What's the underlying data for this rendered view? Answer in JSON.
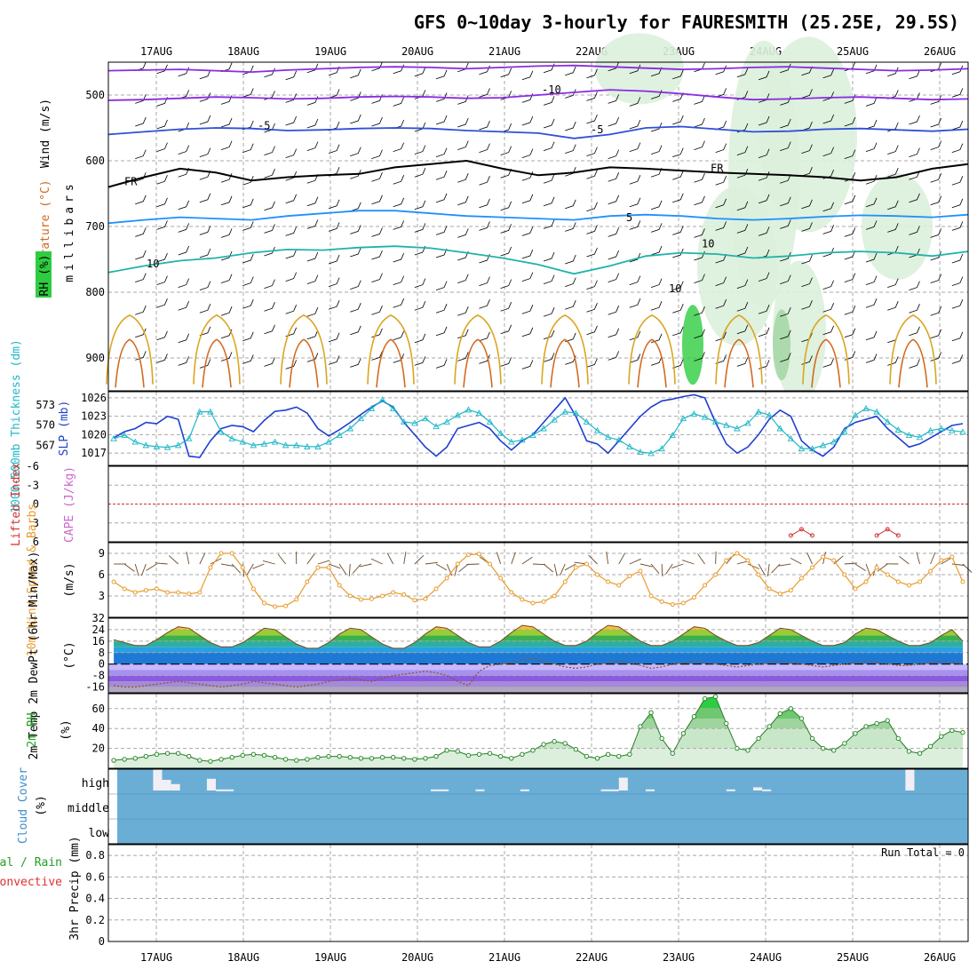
{
  "title": "GFS 0~10day 3-hourly for FAURESMITH (25.25E, 29.5S)",
  "colors": {
    "grid": "#a8a8a8",
    "frame": "#000000",
    "cloud_bg": "#6aaed6",
    "cloud_bar": "#f2eef6",
    "temp_cold": "#8a2be2",
    "temp_mid": "#2f4fd8",
    "temp_light": "#1e90ff",
    "temp_teal": "#20b2aa",
    "temp_warm": "#daa520",
    "temp_hot": "#d2691e",
    "temp_vhot": "#e0207a",
    "slp": "#1f3fd0",
    "thickness": "#20b8c8",
    "wind10": "#e89b2a",
    "rh2m": "#22a022",
    "rh_shade_light": "#dcefdc",
    "rh_shade_mid": "#9fd49f",
    "rh_shade_dark": "#2ecc40",
    "li": "#d03030",
    "dewpt": "#8b5a2b"
  },
  "dates": [
    "17AUG",
    "18AUG",
    "19AUG",
    "20AUG",
    "21AUG",
    "22AUG",
    "23AUG",
    "24AUG",
    "25AUG",
    "26AUG"
  ],
  "run_total": "Run Total = 0",
  "chart_data": [
    {
      "id": "upper",
      "type": "line",
      "yaxis_labels": [
        "Wind (m/s)",
        "Temperature (°C)",
        "RH (%)"
      ],
      "ylabel": "millibars",
      "y_ticks": [
        500,
        600,
        700,
        800,
        900
      ],
      "ylim": [
        950,
        450
      ],
      "contour_labels": [
        "-10",
        "-5",
        "-5",
        "FR",
        "FR",
        "5",
        "10",
        "10",
        "10"
      ],
      "series": [
        {
          "temp": -12,
          "color_key": "temp_cold",
          "values": [
            463,
            462,
            461,
            463,
            465,
            462,
            460,
            458,
            457,
            458,
            460,
            458,
            456,
            455,
            457,
            459,
            461,
            460,
            458,
            457,
            459,
            461,
            463,
            462,
            460
          ]
        },
        {
          "temp": -10,
          "color_key": "temp_cold",
          "values": [
            508,
            507,
            505,
            503,
            504,
            506,
            505,
            503,
            502,
            503,
            505,
            504,
            500,
            496,
            492,
            494,
            498,
            503,
            507,
            506,
            504,
            503,
            505,
            507,
            506
          ]
        },
        {
          "temp": -5,
          "color_key": "temp_mid",
          "values": [
            560,
            556,
            552,
            550,
            551,
            554,
            553,
            551,
            550,
            551,
            554,
            556,
            558,
            566,
            560,
            550,
            548,
            552,
            556,
            555,
            552,
            551,
            553,
            555,
            552
          ]
        },
        {
          "temp": 0,
          "color_key": "frame",
          "values": [
            640,
            625,
            612,
            618,
            630,
            625,
            622,
            620,
            610,
            605,
            600,
            612,
            622,
            618,
            610,
            612,
            615,
            618,
            620,
            622,
            625,
            630,
            625,
            612,
            605
          ]
        },
        {
          "temp": 5,
          "color_key": "temp_light",
          "values": [
            695,
            690,
            686,
            688,
            690,
            684,
            680,
            676,
            676,
            680,
            684,
            686,
            688,
            690,
            684,
            682,
            684,
            688,
            690,
            688,
            685,
            683,
            684,
            686,
            682
          ]
        },
        {
          "temp": 10,
          "color_key": "temp_teal",
          "values": [
            770,
            760,
            752,
            748,
            740,
            735,
            736,
            732,
            730,
            733,
            740,
            748,
            758,
            772,
            760,
            745,
            740,
            742,
            748,
            745,
            740,
            738,
            740,
            745,
            738
          ]
        }
      ]
    },
    {
      "id": "slp",
      "type": "line",
      "left_label": "1000-500mb Thickness (dm)",
      "right_label": "SLP (mb)",
      "left_ticks": [
        573,
        570,
        567
      ],
      "right_ticks": [
        1026,
        1023,
        1020,
        1017
      ],
      "ylim_thickness": [
        564,
        575
      ],
      "ylim_slp": [
        1015,
        1027
      ],
      "x": [
        0,
        1,
        2,
        3,
        4,
        5,
        6,
        7,
        8,
        9,
        10,
        11,
        12,
        13,
        14,
        15,
        16,
        17,
        18,
        19,
        20,
        21,
        22,
        23,
        24,
        25,
        26,
        27,
        28,
        29,
        30,
        31,
        32,
        33,
        34,
        35,
        36,
        37,
        38,
        39,
        40,
        41,
        42,
        43,
        44,
        45,
        46,
        47,
        48,
        49,
        50,
        51,
        52,
        53,
        54,
        55,
        56,
        57,
        58,
        59,
        60,
        61,
        62,
        63,
        64,
        65,
        66,
        67,
        68,
        69,
        70,
        71,
        72,
        73,
        74,
        75,
        76,
        77,
        78,
        79
      ],
      "series": [
        {
          "name": "SLP",
          "color_key": "slp",
          "values": [
            1019.5,
            1020.5,
            1021,
            1022,
            1021.8,
            1023,
            1022.5,
            1016.5,
            1016.3,
            1019,
            1021,
            1021.5,
            1021.3,
            1020.5,
            1022.3,
            1023.8,
            1024,
            1024.5,
            1023.5,
            1021,
            1019.8,
            1020.8,
            1022,
            1023.3,
            1024.5,
            1025.5,
            1024.5,
            1022,
            1020,
            1018,
            1016.5,
            1018,
            1021,
            1021.5,
            1022,
            1021,
            1019,
            1017.5,
            1019,
            1020,
            1022,
            1024,
            1026,
            1023,
            1019,
            1018.5,
            1017,
            1019,
            1021,
            1023,
            1024.5,
            1025.5,
            1025.8,
            1026.2,
            1026.5,
            1026,
            1022,
            1018.5,
            1017,
            1018,
            1020,
            1022.5,
            1024,
            1023,
            1019,
            1017.5,
            1016.5,
            1018,
            1021,
            1022,
            1022.5,
            1023,
            1021,
            1019.5,
            1018,
            1018.5,
            1019.5,
            1020.5,
            1021.5,
            1021.8
          ]
        },
        {
          "name": "Thickness",
          "color_key": "thickness",
          "values": [
            568,
            568.5,
            567.5,
            567,
            566.8,
            566.7,
            567,
            568,
            572,
            572,
            569,
            568,
            567.5,
            567,
            567.2,
            567.5,
            567,
            567,
            566.8,
            566.8,
            567.5,
            568.5,
            569.5,
            571,
            572.5,
            573.8,
            572.5,
            570.5,
            570.3,
            571,
            569.8,
            570.5,
            571.5,
            572.3,
            571.8,
            570.5,
            568.8,
            567.5,
            567.8,
            568.5,
            569.5,
            570.8,
            572,
            571.8,
            570.5,
            569.2,
            568.2,
            567.8,
            566.8,
            566,
            565.8,
            566.5,
            568.5,
            571,
            571.7,
            571.2,
            570.5,
            570,
            569.5,
            570.3,
            572,
            571.5,
            569.5,
            568,
            566.5,
            566.5,
            567,
            567.5,
            569,
            571.5,
            572.5,
            572,
            570.5,
            569.3,
            568.5,
            568.2,
            569.2,
            569.5,
            569.2,
            569
          ]
        }
      ]
    },
    {
      "id": "cape",
      "type": "line",
      "left_label": "Lifted Index",
      "right_label": "CAPE (J/kg)",
      "y_ticks": [
        "-6",
        "-3",
        "0",
        "3",
        "6"
      ],
      "ylim": [
        -6,
        6
      ],
      "series": [
        {
          "name": "Lifted Index segment 1",
          "color_key": "li",
          "x": [
            63,
            64,
            65
          ],
          "values": [
            5,
            4,
            5
          ]
        },
        {
          "name": "Lifted Index segment 2",
          "color_key": "li",
          "x": [
            71,
            72,
            73
          ],
          "values": [
            5,
            4,
            5
          ]
        }
      ]
    },
    {
      "id": "wind10",
      "type": "line",
      "ylabel": "10m Wind Speed & Barbs",
      "unit": "(m/s)",
      "y_ticks": [
        9,
        6,
        3
      ],
      "ylim": [
        0,
        10.5
      ],
      "series": [
        {
          "name": "10m Wind Speed",
          "color_key": "wind10",
          "values": [
            5,
            4,
            3.5,
            3.8,
            4,
            3.5,
            3.5,
            3.3,
            3.5,
            7,
            9,
            9,
            7,
            4,
            2,
            1.5,
            1.6,
            2.5,
            5,
            7,
            7,
            4.5,
            3,
            2.5,
            2.6,
            3,
            3.5,
            3.2,
            2.4,
            2.6,
            4,
            5.5,
            7.5,
            8.8,
            8.9,
            7.5,
            5.5,
            3.5,
            2.5,
            2,
            2.2,
            3,
            5,
            7,
            7.5,
            6,
            5,
            4.5,
            5.8,
            6.5,
            3,
            2.2,
            1.8,
            2,
            2.8,
            4.5,
            6,
            8,
            9,
            8,
            6,
            4,
            3.3,
            3.8,
            5.5,
            7,
            8.5,
            8,
            6,
            4,
            5,
            7,
            6,
            5,
            4.5,
            5,
            6.5,
            8,
            8.5,
            5
          ]
        }
      ]
    },
    {
      "id": "temp2m",
      "type": "area",
      "ylabel": "2m Temp 2m DewPt (6hr Min/Max)",
      "unit": "(°C)",
      "y_ticks": [
        32,
        24,
        16,
        8,
        0,
        -8,
        -16
      ],
      "ylim": [
        -20,
        32
      ],
      "series": [
        {
          "name": "2m Temp",
          "color_key": "temp_warm",
          "values": [
            17,
            15,
            13,
            13,
            17,
            22,
            26,
            25,
            20,
            15,
            12,
            12,
            15,
            20,
            25,
            24,
            19,
            14,
            11,
            11,
            15,
            21,
            25,
            24,
            19,
            14,
            11,
            11,
            15,
            21,
            26,
            25,
            20,
            15,
            12,
            12,
            16,
            22,
            27,
            26,
            21,
            16,
            13,
            13,
            16,
            22,
            27,
            26,
            21,
            16,
            13,
            13,
            16,
            21,
            26,
            25,
            20,
            16,
            13,
            13,
            15,
            20,
            25,
            24,
            20,
            16,
            13,
            13,
            15,
            21,
            25,
            24,
            20,
            16,
            13,
            13,
            15,
            20,
            24,
            16
          ]
        },
        {
          "name": "2m DewPt",
          "color_key": "dewpt",
          "values": [
            -15,
            -16,
            -16,
            -15,
            -14,
            -13,
            -12,
            -13,
            -14,
            -15,
            -16,
            -15,
            -14,
            -12,
            -13,
            -14,
            -15,
            -16,
            -15,
            -14,
            -12,
            -11,
            -10,
            -11,
            -12,
            -10,
            -8,
            -7,
            -6,
            -5,
            -6,
            -8,
            -12,
            -15,
            -5,
            -1,
            0,
            1,
            3,
            4,
            2,
            0,
            -2,
            -3,
            -2,
            0,
            1,
            2,
            1,
            -1,
            -3,
            -2,
            0,
            1,
            2,
            1,
            0,
            -1,
            -2,
            -1,
            0,
            1,
            2,
            1,
            0,
            -1,
            -2,
            -1,
            0,
            1,
            2,
            1,
            0,
            -1,
            -1,
            0,
            1,
            2,
            1,
            0
          ]
        }
      ]
    },
    {
      "id": "rh2m",
      "type": "area",
      "ylabel": "2m RH",
      "unit": "(%)",
      "y_ticks": [
        60,
        40,
        20
      ],
      "ylim": [
        0,
        75
      ],
      "series": [
        {
          "name": "2m RH",
          "color_key": "rh2m",
          "values": [
            8,
            9,
            10,
            12,
            14,
            15,
            15,
            12,
            8,
            7,
            9,
            11,
            13,
            14,
            13,
            11,
            9,
            8,
            9,
            11,
            12,
            12,
            11,
            10,
            10,
            11,
            11,
            10,
            9,
            10,
            12,
            18,
            17,
            13,
            14,
            15,
            12,
            10,
            14,
            18,
            24,
            27,
            25,
            19,
            12,
            10,
            14,
            12,
            14,
            42,
            56,
            30,
            15,
            35,
            52,
            70,
            72,
            45,
            20,
            18,
            30,
            42,
            55,
            60,
            50,
            30,
            20,
            18,
            25,
            35,
            42,
            45,
            48,
            30,
            17,
            15,
            22,
            32,
            38,
            36
          ]
        }
      ]
    },
    {
      "id": "cloud",
      "type": "bar",
      "ylabel": "Cloud Cover",
      "unit": "(%)",
      "levels": [
        "high",
        "middle",
        "low"
      ],
      "series": [
        {
          "name": "high",
          "color_key": "cloud_bar",
          "bars": [
            {
              "x": 5,
              "value": 100
            },
            {
              "x": 6,
              "value": 50
            },
            {
              "x": 7,
              "value": 30
            },
            {
              "x": 11,
              "value": 55
            },
            {
              "x": 12,
              "value": 5
            },
            {
              "x": 13,
              "value": 5
            },
            {
              "x": 36,
              "value": 5
            },
            {
              "x": 37,
              "value": 5
            },
            {
              "x": 41,
              "value": 5
            },
            {
              "x": 46,
              "value": 5
            },
            {
              "x": 55,
              "value": 5
            },
            {
              "x": 56,
              "value": 5
            },
            {
              "x": 57,
              "value": 60
            },
            {
              "x": 60,
              "value": 5
            },
            {
              "x": 69,
              "value": 5
            },
            {
              "x": 72,
              "value": 15
            },
            {
              "x": 73,
              "value": 5
            },
            {
              "x": 89,
              "value": 100
            }
          ]
        },
        {
          "name": "middle",
          "color_key": "cloud_bar",
          "bars": []
        },
        {
          "name": "low",
          "color_key": "cloud_bar",
          "bars": []
        }
      ]
    },
    {
      "id": "precip",
      "type": "bar",
      "left_labels": [
        "Total / Rain",
        "Convective"
      ],
      "ylabel": "3hr Precip (mm)",
      "y_ticks": [
        "0.8",
        "0.6",
        "0.4",
        "0.2",
        "0"
      ],
      "ylim": [
        0,
        0.9
      ],
      "series": [
        {
          "name": "Total / Rain",
          "values": []
        },
        {
          "name": "Convective",
          "values": []
        }
      ]
    }
  ]
}
